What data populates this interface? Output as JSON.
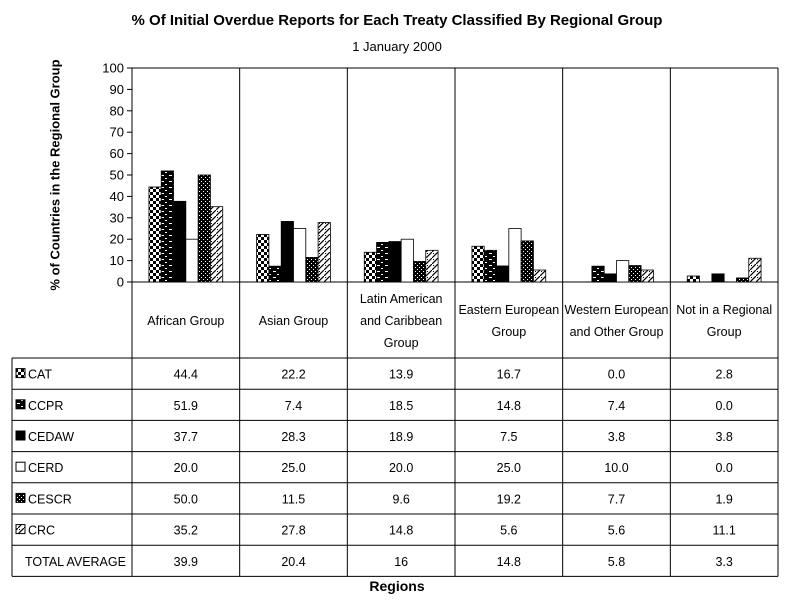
{
  "chart_data": {
    "type": "bar",
    "title": "% Of Initial Overdue Reports for Each Treaty Classified By Regional Group",
    "subtitle": "1 January 2000",
    "ylabel": "% of Countries in the Regional Group",
    "xlabel": "Regions",
    "ylim": [
      0,
      100
    ],
    "yticks": [
      "0",
      "10",
      "20",
      "30",
      "40",
      "50",
      "60",
      "70",
      "80",
      "90",
      "100"
    ],
    "grid": false,
    "legend": "left-of-table",
    "categories": [
      [
        "African Group"
      ],
      [
        "Asian Group"
      ],
      [
        "Latin American",
        "and Caribbean",
        "Group"
      ],
      [
        "Eastern European",
        "Group"
      ],
      [
        "Western European",
        "and Other Group"
      ],
      [
        "Not in a Regional",
        "Group"
      ]
    ],
    "series": [
      {
        "name": "CAT",
        "pattern": "checker",
        "values": [
          44.4,
          22.2,
          13.9,
          16.7,
          0.0,
          2.8
        ],
        "labels": [
          "44.4",
          "22.2",
          "13.9",
          "16.7",
          "0.0",
          "2.8"
        ]
      },
      {
        "name": "CCPR",
        "pattern": "brick",
        "values": [
          51.9,
          7.4,
          18.5,
          14.8,
          7.4,
          0.0
        ],
        "labels": [
          "51.9",
          "7.4",
          "18.5",
          "14.8",
          "7.4",
          "0.0"
        ]
      },
      {
        "name": "CEDAW",
        "pattern": "solid",
        "values": [
          37.7,
          28.3,
          18.9,
          7.5,
          3.8,
          3.8
        ],
        "labels": [
          "37.7",
          "28.3",
          "18.9",
          "7.5",
          "3.8",
          "3.8"
        ]
      },
      {
        "name": "CERD",
        "pattern": "white",
        "values": [
          20.0,
          25.0,
          20.0,
          25.0,
          10.0,
          0.0
        ],
        "labels": [
          "20.0",
          "25.0",
          "20.0",
          "25.0",
          "10.0",
          "0.0"
        ]
      },
      {
        "name": "CESCR",
        "pattern": "darkcheck",
        "values": [
          50.0,
          11.5,
          9.6,
          19.2,
          7.7,
          1.9
        ],
        "labels": [
          "50.0",
          "11.5",
          "9.6",
          "19.2",
          "7.7",
          "1.9"
        ]
      },
      {
        "name": "CRC",
        "pattern": "diagonal",
        "values": [
          35.2,
          27.8,
          14.8,
          5.6,
          5.6,
          11.1
        ],
        "labels": [
          "35.2",
          "27.8",
          "14.8",
          "5.6",
          "5.6",
          "11.1"
        ]
      }
    ],
    "total_row": {
      "name": "TOTAL AVERAGE",
      "values": [
        "39.9",
        "20.4",
        "16",
        "14.8",
        "5.8",
        "3.3"
      ]
    }
  }
}
